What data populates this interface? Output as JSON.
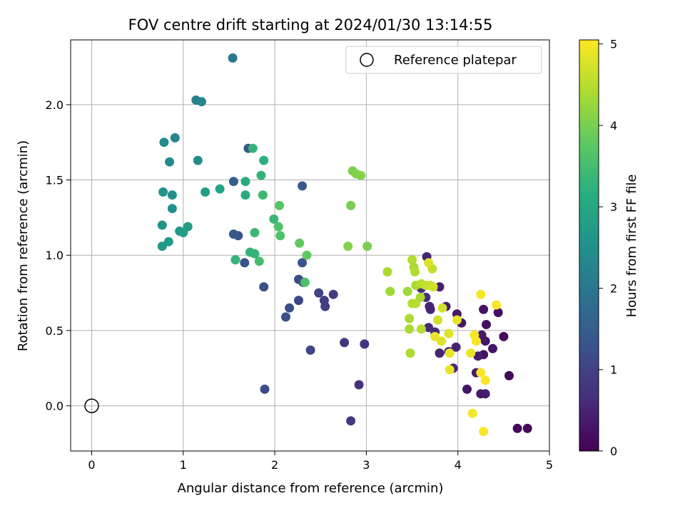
{
  "chart_data": {
    "type": "scatter",
    "title": "FOV centre drift starting at 2024/01/30 13:14:55",
    "xlabel": "Angular distance from reference (arcmin)",
    "ylabel": "Rotation from reference (arcmin)",
    "xlim": [
      -0.23,
      5.0
    ],
    "ylim": [
      -0.3,
      2.43
    ],
    "x_ticks": [
      0,
      1,
      2,
      3,
      4,
      5
    ],
    "x_tick_labels": [
      "0",
      "1",
      "2",
      "3",
      "4",
      "5"
    ],
    "y_ticks": [
      0.0,
      0.5,
      1.0,
      1.5,
      2.0
    ],
    "y_tick_labels": [
      "0.0",
      "0.5",
      "1.0",
      "1.5",
      "2.0"
    ],
    "grid": true,
    "colormap": "viridis",
    "colorbar": {
      "label": "Hours from first FF file",
      "range": [
        0,
        5.05
      ],
      "ticks": [
        0,
        1,
        2,
        3,
        4,
        5
      ],
      "tick_labels": [
        "0",
        "1",
        "2",
        "3",
        "4",
        "5"
      ]
    },
    "legend": {
      "position": "top-right",
      "entries": [
        {
          "label": "Reference platepar",
          "marker": "open-circle"
        }
      ]
    },
    "reference_point": {
      "x": 0,
      "y": 0
    },
    "points": [
      {
        "x": 4.65,
        "y": -0.15,
        "c": 0.1
      },
      {
        "x": 4.76,
        "y": -0.15,
        "c": 0.12
      },
      {
        "x": 4.56,
        "y": 0.2,
        "c": 0.1
      },
      {
        "x": 4.5,
        "y": 0.46,
        "c": 0.15
      },
      {
        "x": 4.44,
        "y": 0.62,
        "c": 0.2
      },
      {
        "x": 4.38,
        "y": 0.38,
        "c": 0.3
      },
      {
        "x": 4.3,
        "y": 0.08,
        "c": 0.4
      },
      {
        "x": 4.25,
        "y": 0.08,
        "c": 0.35
      },
      {
        "x": 4.1,
        "y": 0.11,
        "c": 0.3
      },
      {
        "x": 4.28,
        "y": 0.34,
        "c": 0.25
      },
      {
        "x": 4.3,
        "y": 0.43,
        "c": 0.3
      },
      {
        "x": 4.31,
        "y": 0.54,
        "c": 0.2
      },
      {
        "x": 4.28,
        "y": 0.64,
        "c": 0.25
      },
      {
        "x": 4.26,
        "y": 0.47,
        "c": 0.35
      },
      {
        "x": 4.2,
        "y": 0.22,
        "c": 0.4
      },
      {
        "x": 4.22,
        "y": 0.33,
        "c": 0.45
      },
      {
        "x": 4.04,
        "y": 0.55,
        "c": 0.3
      },
      {
        "x": 3.99,
        "y": 0.61,
        "c": 0.35
      },
      {
        "x": 3.98,
        "y": 0.39,
        "c": 0.5
      },
      {
        "x": 3.95,
        "y": 0.25,
        "c": 0.6
      },
      {
        "x": 3.9,
        "y": 0.36,
        "c": 0.55
      },
      {
        "x": 3.87,
        "y": 0.66,
        "c": 0.4
      },
      {
        "x": 3.8,
        "y": 0.79,
        "c": 0.45
      },
      {
        "x": 3.8,
        "y": 0.35,
        "c": 0.5
      },
      {
        "x": 3.75,
        "y": 0.49,
        "c": 0.6
      },
      {
        "x": 3.7,
        "y": 0.64,
        "c": 0.55
      },
      {
        "x": 3.69,
        "y": 0.66,
        "c": 0.5
      },
      {
        "x": 3.68,
        "y": 0.52,
        "c": 0.6
      },
      {
        "x": 3.66,
        "y": 0.99,
        "c": 0.5
      },
      {
        "x": 3.65,
        "y": 0.72,
        "c": 0.65
      },
      {
        "x": 3.6,
        "y": 0.78,
        "c": 0.7
      },
      {
        "x": 2.92,
        "y": 0.14,
        "c": 0.7
      },
      {
        "x": 2.83,
        "y": -0.1,
        "c": 0.85
      },
      {
        "x": 2.98,
        "y": 0.41,
        "c": 0.75
      },
      {
        "x": 2.76,
        "y": 0.42,
        "c": 0.8
      },
      {
        "x": 2.64,
        "y": 0.74,
        "c": 0.9
      },
      {
        "x": 2.55,
        "y": 0.66,
        "c": 0.95
      },
      {
        "x": 2.54,
        "y": 0.7,
        "c": 0.9
      },
      {
        "x": 2.48,
        "y": 0.75,
        "c": 1.0
      },
      {
        "x": 2.39,
        "y": 0.37,
        "c": 1.05
      },
      {
        "x": 2.31,
        "y": 0.82,
        "c": 1.1
      },
      {
        "x": 2.26,
        "y": 0.84,
        "c": 1.15
      },
      {
        "x": 2.26,
        "y": 0.7,
        "c": 1.1
      },
      {
        "x": 2.16,
        "y": 0.65,
        "c": 1.2
      },
      {
        "x": 2.12,
        "y": 0.59,
        "c": 1.25
      },
      {
        "x": 1.89,
        "y": 0.11,
        "c": 1.15
      },
      {
        "x": 1.88,
        "y": 0.79,
        "c": 1.2
      },
      {
        "x": 2.3,
        "y": 0.95,
        "c": 1.3
      },
      {
        "x": 2.3,
        "y": 1.46,
        "c": 1.45
      },
      {
        "x": 1.67,
        "y": 0.95,
        "c": 1.3
      },
      {
        "x": 1.6,
        "y": 1.13,
        "c": 1.35
      },
      {
        "x": 1.55,
        "y": 1.14,
        "c": 1.4
      },
      {
        "x": 1.55,
        "y": 1.49,
        "c": 1.5
      },
      {
        "x": 1.71,
        "y": 1.71,
        "c": 1.4
      },
      {
        "x": 1.54,
        "y": 2.31,
        "c": 2.0
      },
      {
        "x": 1.14,
        "y": 2.03,
        "c": 2.2
      },
      {
        "x": 1.2,
        "y": 2.02,
        "c": 2.3
      },
      {
        "x": 0.91,
        "y": 1.78,
        "c": 2.3
      },
      {
        "x": 0.79,
        "y": 1.75,
        "c": 2.4
      },
      {
        "x": 0.85,
        "y": 1.62,
        "c": 2.4
      },
      {
        "x": 1.16,
        "y": 1.63,
        "c": 2.5
      },
      {
        "x": 0.78,
        "y": 1.42,
        "c": 2.6
      },
      {
        "x": 0.88,
        "y": 1.4,
        "c": 2.5
      },
      {
        "x": 0.88,
        "y": 1.31,
        "c": 2.5
      },
      {
        "x": 1.24,
        "y": 1.42,
        "c": 2.8
      },
      {
        "x": 1.4,
        "y": 1.44,
        "c": 2.9
      },
      {
        "x": 0.77,
        "y": 1.2,
        "c": 2.6
      },
      {
        "x": 0.96,
        "y": 1.16,
        "c": 2.7
      },
      {
        "x": 1.0,
        "y": 1.15,
        "c": 2.8
      },
      {
        "x": 1.05,
        "y": 1.19,
        "c": 2.8
      },
      {
        "x": 0.84,
        "y": 1.09,
        "c": 2.7
      },
      {
        "x": 0.77,
        "y": 1.06,
        "c": 2.7
      },
      {
        "x": 1.68,
        "y": 1.49,
        "c": 3.1
      },
      {
        "x": 1.68,
        "y": 1.4,
        "c": 3.1
      },
      {
        "x": 1.76,
        "y": 1.71,
        "c": 3.3
      },
      {
        "x": 1.88,
        "y": 1.63,
        "c": 3.2
      },
      {
        "x": 1.85,
        "y": 1.53,
        "c": 3.3
      },
      {
        "x": 1.87,
        "y": 1.4,
        "c": 3.4
      },
      {
        "x": 1.78,
        "y": 1.15,
        "c": 3.4
      },
      {
        "x": 1.73,
        "y": 1.02,
        "c": 3.3
      },
      {
        "x": 1.78,
        "y": 1.01,
        "c": 3.3
      },
      {
        "x": 1.57,
        "y": 0.97,
        "c": 3.3
      },
      {
        "x": 1.83,
        "y": 0.96,
        "c": 3.5
      },
      {
        "x": 1.99,
        "y": 1.24,
        "c": 3.4
      },
      {
        "x": 2.04,
        "y": 1.19,
        "c": 3.6
      },
      {
        "x": 2.06,
        "y": 1.13,
        "c": 3.6
      },
      {
        "x": 2.05,
        "y": 1.33,
        "c": 3.7
      },
      {
        "x": 2.27,
        "y": 1.08,
        "c": 3.8
      },
      {
        "x": 2.35,
        "y": 1.0,
        "c": 3.8
      },
      {
        "x": 2.33,
        "y": 0.82,
        "c": 3.6
      },
      {
        "x": 2.85,
        "y": 1.56,
        "c": 4.0
      },
      {
        "x": 2.89,
        "y": 1.54,
        "c": 4.1
      },
      {
        "x": 2.94,
        "y": 1.53,
        "c": 4.1
      },
      {
        "x": 2.83,
        "y": 1.33,
        "c": 4.0
      },
      {
        "x": 2.8,
        "y": 1.06,
        "c": 4.1
      },
      {
        "x": 3.01,
        "y": 1.06,
        "c": 4.0
      },
      {
        "x": 3.23,
        "y": 0.89,
        "c": 4.4
      },
      {
        "x": 3.26,
        "y": 0.76,
        "c": 4.3
      },
      {
        "x": 3.45,
        "y": 0.76,
        "c": 4.3
      },
      {
        "x": 3.47,
        "y": 0.58,
        "c": 4.4
      },
      {
        "x": 3.47,
        "y": 0.51,
        "c": 4.4
      },
      {
        "x": 3.48,
        "y": 0.35,
        "c": 4.4
      },
      {
        "x": 3.5,
        "y": 0.97,
        "c": 4.45
      },
      {
        "x": 3.52,
        "y": 0.92,
        "c": 4.4
      },
      {
        "x": 3.53,
        "y": 0.89,
        "c": 4.45
      },
      {
        "x": 3.5,
        "y": 0.68,
        "c": 4.5
      },
      {
        "x": 3.54,
        "y": 0.68,
        "c": 4.5
      },
      {
        "x": 3.54,
        "y": 0.8,
        "c": 4.4
      },
      {
        "x": 3.59,
        "y": 0.72,
        "c": 4.4
      },
      {
        "x": 3.6,
        "y": 0.81,
        "c": 4.5
      },
      {
        "x": 3.6,
        "y": 0.51,
        "c": 4.5
      },
      {
        "x": 3.65,
        "y": 0.8,
        "c": 4.6
      },
      {
        "x": 3.7,
        "y": 0.8,
        "c": 4.6
      },
      {
        "x": 3.72,
        "y": 0.91,
        "c": 4.6
      },
      {
        "x": 3.68,
        "y": 0.95,
        "c": 4.8
      },
      {
        "x": 3.73,
        "y": 0.79,
        "c": 4.7
      },
      {
        "x": 3.78,
        "y": 0.57,
        "c": 4.7
      },
      {
        "x": 3.82,
        "y": 0.43,
        "c": 4.8
      },
      {
        "x": 3.83,
        "y": 0.65,
        "c": 4.7
      },
      {
        "x": 3.9,
        "y": 0.48,
        "c": 4.8
      },
      {
        "x": 3.75,
        "y": 0.46,
        "c": 4.9
      },
      {
        "x": 3.91,
        "y": 0.24,
        "c": 4.9
      },
      {
        "x": 3.91,
        "y": 0.35,
        "c": 4.9
      },
      {
        "x": 3.99,
        "y": 0.57,
        "c": 4.9
      },
      {
        "x": 4.14,
        "y": 0.35,
        "c": 4.9
      },
      {
        "x": 4.18,
        "y": 0.47,
        "c": 5.0
      },
      {
        "x": 4.2,
        "y": 0.43,
        "c": 5.0
      },
      {
        "x": 4.16,
        "y": -0.05,
        "c": 5.0
      },
      {
        "x": 4.28,
        "y": -0.17,
        "c": 5.0
      },
      {
        "x": 4.25,
        "y": 0.22,
        "c": 5.0
      },
      {
        "x": 4.3,
        "y": 0.17,
        "c": 5.0
      },
      {
        "x": 4.25,
        "y": 0.74,
        "c": 5.0
      },
      {
        "x": 4.42,
        "y": 0.67,
        "c": 5.0
      }
    ]
  }
}
